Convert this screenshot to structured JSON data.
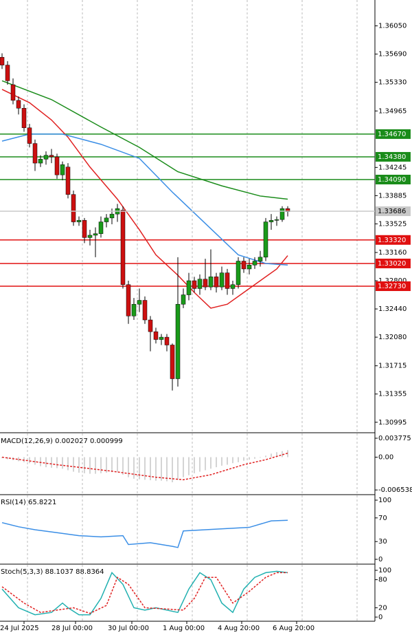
{
  "chart_data": {
    "type": "candlestick",
    "ylim": [
      1.3087,
      1.3638
    ],
    "yticks": [
      {
        "value": 1.3605,
        "label": "1.36050"
      },
      {
        "value": 1.3569,
        "label": "1.35690"
      },
      {
        "value": 1.3533,
        "label": "1.35330"
      },
      {
        "value": 1.34965,
        "label": "1.34965"
      },
      {
        "value": 1.34245,
        "label": "1.34245"
      },
      {
        "value": 1.33885,
        "label": "1.33885"
      },
      {
        "value": 1.33525,
        "label": "1.33525"
      },
      {
        "value": 1.3316,
        "label": "1.33160"
      },
      {
        "value": 1.328,
        "label": "1.32800"
      },
      {
        "value": 1.3244,
        "label": "1.32440"
      },
      {
        "value": 1.3208,
        "label": "1.32080"
      },
      {
        "value": 1.31715,
        "label": "1.31715"
      },
      {
        "value": 1.31355,
        "label": "1.31355"
      },
      {
        "value": 1.30995,
        "label": "1.30995"
      }
    ],
    "levels": [
      {
        "value": 1.3467,
        "label": "1.34670",
        "color": "#1a8c1a"
      },
      {
        "value": 1.3438,
        "label": "1.34380",
        "color": "#1a8c1a"
      },
      {
        "value": 1.3409,
        "label": "1.34090",
        "color": "#1a8c1a"
      },
      {
        "value": 1.3332,
        "label": "1.33320",
        "color": "#e01010"
      },
      {
        "value": 1.3302,
        "label": "1.33020",
        "color": "#e01010"
      },
      {
        "value": 1.3273,
        "label": "1.32730",
        "color": "#e01010"
      }
    ],
    "current": {
      "value": 1.33686,
      "label": "1.33686",
      "color": "#c8c8c8"
    },
    "up_color": "#1a9a1a",
    "down_color": "#cc1010",
    "ohlc": [
      [
        1.3565,
        1.357,
        1.355,
        1.3555
      ],
      [
        1.3555,
        1.356,
        1.353,
        1.3535
      ],
      [
        1.353,
        1.3538,
        1.3505,
        1.351
      ],
      [
        1.351,
        1.3515,
        1.3492,
        1.35
      ],
      [
        1.35,
        1.3505,
        1.347,
        1.3475
      ],
      [
        1.3475,
        1.348,
        1.345,
        1.3455
      ],
      [
        1.3455,
        1.346,
        1.342,
        1.343
      ],
      [
        1.343,
        1.344,
        1.3425,
        1.3435
      ],
      [
        1.3435,
        1.3445,
        1.3428,
        1.344
      ],
      [
        1.344,
        1.3448,
        1.343,
        1.3438
      ],
      [
        1.3438,
        1.3442,
        1.341,
        1.3415
      ],
      [
        1.3415,
        1.3432,
        1.3408,
        1.3428
      ],
      [
        1.3425,
        1.343,
        1.3385,
        1.339
      ],
      [
        1.339,
        1.3395,
        1.335,
        1.3355
      ],
      [
        1.3355,
        1.3362,
        1.335,
        1.3357
      ],
      [
        1.3357,
        1.336,
        1.3328,
        1.3335
      ],
      [
        1.3335,
        1.3345,
        1.3325,
        1.3338
      ],
      [
        1.3338,
        1.3348,
        1.331,
        1.334
      ],
      [
        1.334,
        1.3362,
        1.3335,
        1.3355
      ],
      [
        1.3355,
        1.3365,
        1.3348,
        1.336
      ],
      [
        1.336,
        1.3372,
        1.3352,
        1.3365
      ],
      [
        1.3365,
        1.3378,
        1.3355,
        1.3372
      ],
      [
        1.337,
        1.3375,
        1.327,
        1.3275
      ],
      [
        1.3275,
        1.328,
        1.3225,
        1.3235
      ],
      [
        1.3235,
        1.3258,
        1.323,
        1.325
      ],
      [
        1.325,
        1.327,
        1.324,
        1.3255
      ],
      [
        1.3255,
        1.326,
        1.3225,
        1.323
      ],
      [
        1.323,
        1.3235,
        1.319,
        1.3215
      ],
      [
        1.3215,
        1.322,
        1.32,
        1.3205
      ],
      [
        1.3205,
        1.3212,
        1.3198,
        1.3208
      ],
      [
        1.3208,
        1.3212,
        1.319,
        1.3198
      ],
      [
        1.3198,
        1.32,
        1.314,
        1.3155
      ],
      [
        1.3155,
        1.331,
        1.3145,
        1.325
      ],
      [
        1.325,
        1.327,
        1.3245,
        1.3262
      ],
      [
        1.3262,
        1.329,
        1.3255,
        1.328
      ],
      [
        1.328,
        1.3285,
        1.3265,
        1.327
      ],
      [
        1.327,
        1.3288,
        1.3262,
        1.3282
      ],
      [
        1.3282,
        1.3308,
        1.3268,
        1.3272
      ],
      [
        1.3272,
        1.332,
        1.3268,
        1.3285
      ],
      [
        1.3285,
        1.329,
        1.3265,
        1.3272
      ],
      [
        1.3272,
        1.3298,
        1.3268,
        1.329
      ],
      [
        1.329,
        1.3295,
        1.3262,
        1.327
      ],
      [
        1.327,
        1.328,
        1.3262,
        1.3275
      ],
      [
        1.3275,
        1.331,
        1.327,
        1.3305
      ],
      [
        1.3305,
        1.331,
        1.329,
        1.3295
      ],
      [
        1.3295,
        1.3308,
        1.3288,
        1.33
      ],
      [
        1.33,
        1.331,
        1.3295,
        1.3305
      ],
      [
        1.3305,
        1.3318,
        1.3298,
        1.331
      ],
      [
        1.331,
        1.336,
        1.3305,
        1.3355
      ],
      [
        1.3355,
        1.3365,
        1.3345,
        1.3357
      ],
      [
        1.3357,
        1.3362,
        1.335,
        1.3358
      ],
      [
        1.3358,
        1.3375,
        1.3355,
        1.3372
      ],
      [
        1.3372,
        1.3375,
        1.3362,
        1.3368
      ]
    ],
    "series": [
      {
        "color": "#e02020",
        "x": [
          0,
          5,
          9,
          12,
          16,
          21,
          25,
          28,
          32,
          35,
          38,
          41,
          44,
          47,
          50,
          52
        ],
        "values": [
          1.3524,
          1.3507,
          1.3485,
          1.3463,
          1.3425,
          1.3384,
          1.3345,
          1.3313,
          1.3287,
          1.3265,
          1.3245,
          1.325,
          1.3265,
          1.328,
          1.3295,
          1.3312
        ]
      },
      {
        "color": "#3a8ee6",
        "x": [
          0,
          5,
          11,
          18,
          25,
          31,
          37,
          43,
          48,
          52
        ],
        "values": [
          1.3458,
          1.3467,
          1.3467,
          1.3454,
          1.3436,
          1.3393,
          1.3353,
          1.3313,
          1.3302,
          1.33
        ]
      },
      {
        "color": "#1a8c1a",
        "x": [
          0,
          9,
          18,
          25,
          32,
          40,
          47,
          52
        ],
        "values": [
          1.3535,
          1.3511,
          1.3476,
          1.345,
          1.3419,
          1.3401,
          1.3388,
          1.3384
        ]
      }
    ],
    "macd": {
      "label": "MACD(12,26,9) 0.002027 0.000999",
      "ylim": [
        -0.0072,
        0.0046
      ],
      "yticks": [
        0.003775,
        {
          "value": 0,
          "label": "0.00"
        },
        -0.006538
      ],
      "histogram": [
        -0.0002,
        -0.0004,
        -0.0006,
        -0.0008,
        -0.001,
        -0.0012,
        -0.0015,
        -0.0018,
        -0.002,
        -0.0021,
        -0.0022,
        -0.0023,
        -0.0026,
        -0.0029,
        -0.0031,
        -0.0032,
        -0.0033,
        -0.0033,
        -0.0032,
        -0.0031,
        -0.003,
        -0.0029,
        -0.0035,
        -0.004,
        -0.0043,
        -0.0044,
        -0.0045,
        -0.0046,
        -0.0047,
        -0.0047,
        -0.0048,
        -0.005,
        -0.0045,
        -0.004,
        -0.0036,
        -0.0032,
        -0.0029,
        -0.0026,
        -0.0023,
        -0.002,
        -0.0017,
        -0.0015,
        -0.0012,
        -0.001,
        -0.0007,
        -0.0005,
        -0.0003,
        -0.0001,
        0.0003,
        0.0007,
        0.001,
        0.0012,
        0.0014
      ],
      "signal": {
        "color": "#e02020",
        "x": [
          0,
          10,
          20,
          28,
          33,
          38,
          44,
          48,
          52
        ],
        "values": [
          0,
          -0.0015,
          -0.0028,
          -0.004,
          -0.0045,
          -0.0035,
          -0.0015,
          -0.0005,
          0.0008
        ]
      }
    },
    "rsi": {
      "label": "RSI(14) 65.8221",
      "ylim": [
        0,
        100
      ],
      "yticks": [
        100,
        70,
        30,
        0
      ],
      "line": {
        "color": "#3a8ee6",
        "x": [
          0,
          3,
          6,
          10,
          14,
          18,
          22,
          23,
          27,
          31,
          32,
          33,
          37,
          41,
          45,
          49,
          52
        ],
        "values": [
          62,
          55,
          50,
          45,
          40,
          38,
          40,
          25,
          28,
          22,
          20,
          48,
          50,
          52,
          54,
          65,
          66
        ]
      }
    },
    "stoch": {
      "label": "Stoch(5,3,3) 88.1037 88.8364",
      "ylim": [
        0,
        100
      ],
      "yticks": [
        100,
        80,
        20,
        0
      ],
      "main": {
        "color": "#20b0b0",
        "x": [
          0,
          3,
          6,
          9,
          11,
          12,
          14,
          16,
          18,
          20,
          22,
          24,
          26,
          28,
          30,
          32,
          34,
          36,
          38,
          40,
          42,
          44,
          46,
          48,
          50,
          52
        ],
        "values": [
          60,
          20,
          5,
          10,
          30,
          20,
          5,
          5,
          40,
          95,
          70,
          20,
          15,
          20,
          15,
          10,
          60,
          95,
          80,
          30,
          10,
          60,
          85,
          95,
          98,
          95
        ]
      },
      "signal": {
        "color": "#e02020",
        "x": [
          0,
          4,
          7,
          10,
          13,
          16,
          19,
          21,
          23,
          26,
          29,
          33,
          35,
          37,
          39,
          42,
          45,
          48,
          50,
          52
        ],
        "values": [
          65,
          30,
          10,
          15,
          20,
          8,
          25,
          85,
          70,
          20,
          18,
          15,
          40,
          85,
          85,
          30,
          55,
          85,
          95,
          95
        ]
      }
    },
    "time_labels": [
      "24 Jul 2025",
      "28 Jul 00:00",
      "30 Jul 00:00",
      "1 Aug 00:00",
      "4 Aug 20:00",
      "6 Aug 20:00"
    ]
  }
}
